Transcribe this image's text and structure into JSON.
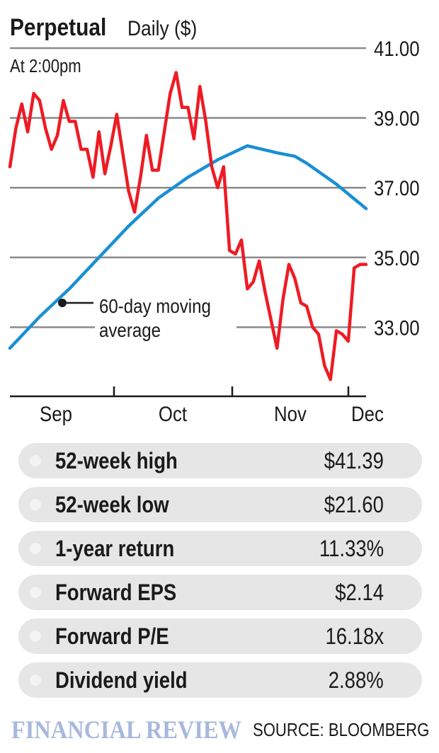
{
  "header": {
    "title": "Perpetual",
    "subtitle": "Daily ($)",
    "timestamp": "At 2:00pm"
  },
  "chart_data": {
    "type": "line",
    "title": "Perpetual",
    "subtitle": "Daily ($)",
    "xlabel": "",
    "ylabel": "",
    "ylim": [
      31.4,
      41.4
    ],
    "yticks": [
      41.0,
      39.0,
      37.0,
      35.0,
      33.0
    ],
    "ytick_labels": [
      "41.00",
      "39.00",
      "37.00",
      "35.00",
      "33.00"
    ],
    "xtick_labels": [
      "Sep",
      "Oct",
      "Nov",
      "Dec"
    ],
    "grid": true,
    "annotation": {
      "line1": "60-day moving",
      "line2": "average"
    },
    "series": [
      {
        "color": "#ee1b24",
        "x": [
          0,
          1,
          2,
          3,
          4,
          5,
          6,
          7,
          8,
          9,
          10,
          11,
          12,
          13,
          14,
          15,
          16,
          17,
          18,
          19,
          20,
          21,
          22,
          23,
          24,
          25,
          26,
          27,
          28,
          29,
          30,
          31,
          32,
          33,
          34,
          35,
          36,
          37,
          38,
          39,
          40,
          41,
          42,
          43,
          44,
          45,
          46,
          47,
          48,
          49,
          50,
          51,
          52,
          53,
          54,
          55,
          56,
          57,
          58,
          59,
          60,
          61,
          62,
          63,
          64,
          65,
          66,
          67,
          68,
          69,
          70,
          71,
          72,
          73,
          74,
          75,
          76,
          77,
          78
        ],
        "values": [
          37.6,
          38.7,
          39.4,
          38.6,
          39.7,
          39.5,
          38.7,
          38.1,
          38.5,
          39.5,
          38.9,
          38.9,
          38.1,
          38.1,
          37.3,
          38.6,
          37.4,
          38.2,
          39.1,
          38.0,
          36.9,
          36.3,
          37.3,
          38.5,
          37.5,
          37.5,
          38.6,
          39.7,
          40.3,
          39.3,
          39.3,
          38.4,
          39.9,
          38.9,
          37.6,
          37.0,
          37.6,
          35.2,
          35.1,
          35.5,
          34.1,
          34.3,
          34.9,
          34.0,
          33.2,
          32.4,
          33.8,
          34.8,
          34.4,
          33.7,
          33.6,
          33.0,
          32.8,
          31.9,
          31.5,
          32.9,
          32.8,
          32.6,
          34.7,
          34.8,
          34.8,
          34.8,
          34.8,
          34.8,
          34.8,
          34.8,
          34.8,
          34.8,
          34.8,
          34.8,
          34.8,
          34.8,
          34.8,
          34.8,
          34.8,
          34.8,
          34.8,
          34.8,
          34.8
        ]
      },
      {
        "name": "60-day moving average",
        "color": "#1a8fd3",
        "x": [
          0,
          5,
          10,
          15,
          20,
          25,
          30,
          35,
          40,
          45,
          48,
          50,
          55,
          60
        ],
        "values": [
          32.4,
          33.3,
          34.1,
          35.0,
          35.9,
          36.7,
          37.3,
          37.8,
          38.2,
          38.0,
          37.9,
          37.7,
          37.1,
          36.4
        ]
      }
    ]
  },
  "stats": [
    {
      "label": "52-week high",
      "value": "$41.39"
    },
    {
      "label": "52-week low",
      "value": "$21.60"
    },
    {
      "label": "1-year return",
      "value": "11.33%"
    },
    {
      "label": "Forward EPS",
      "value": "$2.14"
    },
    {
      "label": "Forward P/E",
      "value": "16.18x"
    },
    {
      "label": "Dividend yield",
      "value": "2.88%"
    }
  ],
  "footer": {
    "brand": "FINANCIAL REVIEW",
    "source": "SOURCE: BLOOMBERG"
  },
  "colors": {
    "price_line": "#ee1b24",
    "moving_average": "#1a8fd3",
    "gridline": "#8a8a8a",
    "stat_row": "#e6e6e6",
    "brand": "#a8b8dd"
  }
}
